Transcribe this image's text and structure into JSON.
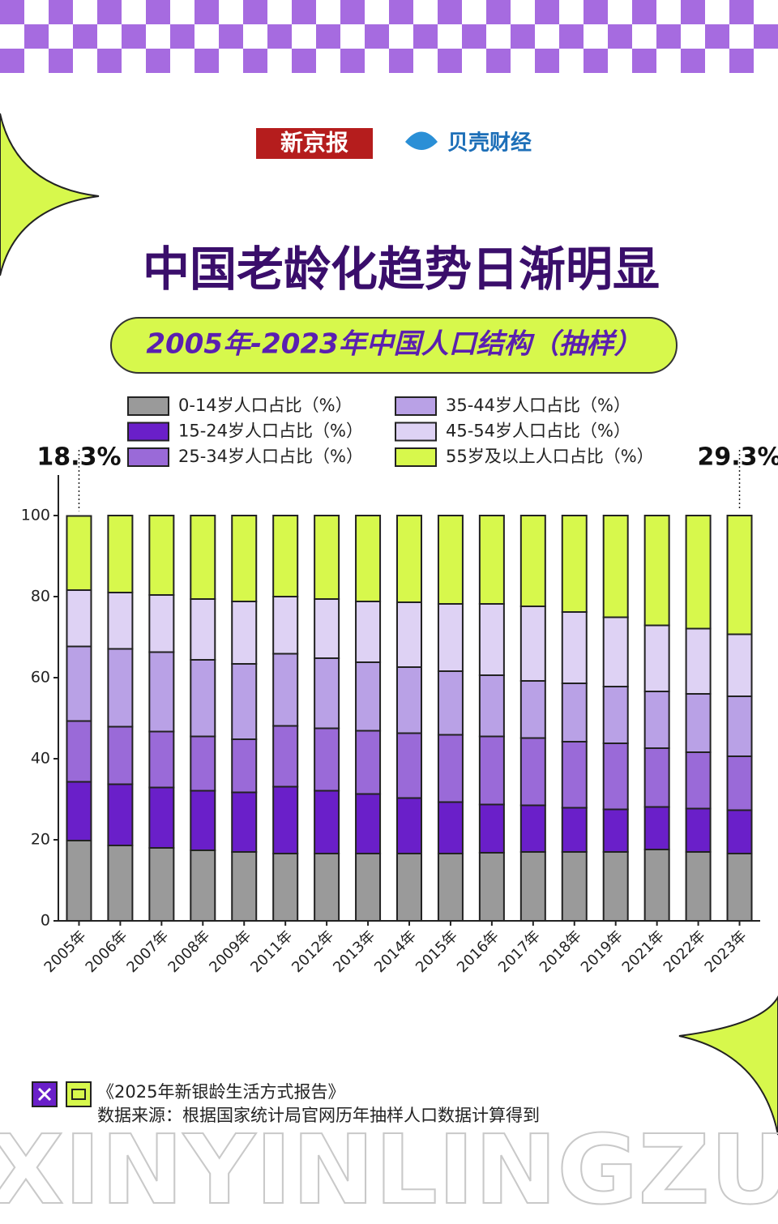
{
  "header": {
    "logos": [
      "新京报",
      "贝壳财经"
    ]
  },
  "chart_data": {
    "type": "stacked-bar",
    "title": "中国老龄化趋势日渐明显",
    "subtitle": "2005年-2023年中国人口结构（抽样）",
    "categories": [
      "2005年",
      "2006年",
      "2007年",
      "2008年",
      "2009年",
      "2011年",
      "2012年",
      "2013年",
      "2014年",
      "2015年",
      "2016年",
      "2017年",
      "2018年",
      "2019年",
      "2021年",
      "2022年",
      "2023年"
    ],
    "series": [
      {
        "name": "0-14岁人口占比（%）",
        "color": "#9a9a9a",
        "values": [
          19.8,
          18.6,
          18.0,
          17.4,
          17.0,
          16.6,
          16.6,
          16.6,
          16.6,
          16.6,
          16.8,
          17.0,
          17.0,
          17.0,
          17.6,
          17.0,
          16.6
        ]
      },
      {
        "name": "15-24岁人口占比（%）",
        "color": "#6a1fc9",
        "values": [
          14.5,
          15.1,
          14.9,
          14.7,
          14.7,
          16.5,
          15.5,
          14.7,
          13.7,
          12.7,
          11.9,
          11.5,
          10.9,
          10.5,
          10.5,
          10.7,
          10.7
        ]
      },
      {
        "name": "25-34岁人口占比（%）",
        "color": "#9a6ad8",
        "values": [
          15.0,
          14.2,
          13.8,
          13.4,
          13.1,
          15.0,
          15.4,
          15.6,
          16.0,
          16.6,
          16.8,
          16.6,
          16.3,
          16.3,
          14.5,
          13.9,
          13.3
        ]
      },
      {
        "name": "35-44岁人口占比（%）",
        "color": "#b9a1e6",
        "values": [
          18.4,
          19.2,
          19.6,
          18.9,
          18.6,
          17.8,
          17.3,
          16.9,
          16.3,
          15.7,
          15.1,
          14.1,
          14.4,
          14.0,
          14.0,
          14.4,
          14.8
        ]
      },
      {
        "name": "45-54岁人口占比（%）",
        "color": "#ded2f4",
        "values": [
          13.9,
          13.9,
          14.1,
          15.0,
          15.4,
          14.1,
          14.6,
          15.0,
          16.0,
          16.6,
          17.6,
          18.4,
          17.6,
          17.1,
          16.3,
          16.1,
          15.3
        ]
      },
      {
        "name": "55岁及以上人口占比（%）",
        "color": "#d7f84c",
        "values": [
          18.3,
          19.0,
          19.6,
          20.6,
          21.2,
          20.0,
          20.6,
          21.2,
          21.4,
          21.8,
          21.8,
          22.4,
          23.8,
          25.1,
          27.1,
          27.9,
          29.3
        ],
        "value_labels": [
          "18.3%",
          null,
          null,
          null,
          null,
          null,
          null,
          null,
          null,
          null,
          null,
          null,
          null,
          null,
          null,
          null,
          "29.3%"
        ]
      }
    ],
    "ylim": [
      0,
      110
    ],
    "yticks": [
      0,
      20,
      40,
      60,
      80,
      100
    ]
  },
  "footer": {
    "report": "《2025年新银龄生活方式报告》",
    "source": "数据来源：根据国家统计局官网历年抽样人口数据计算得到",
    "banner": "XINYINLINGZU"
  }
}
